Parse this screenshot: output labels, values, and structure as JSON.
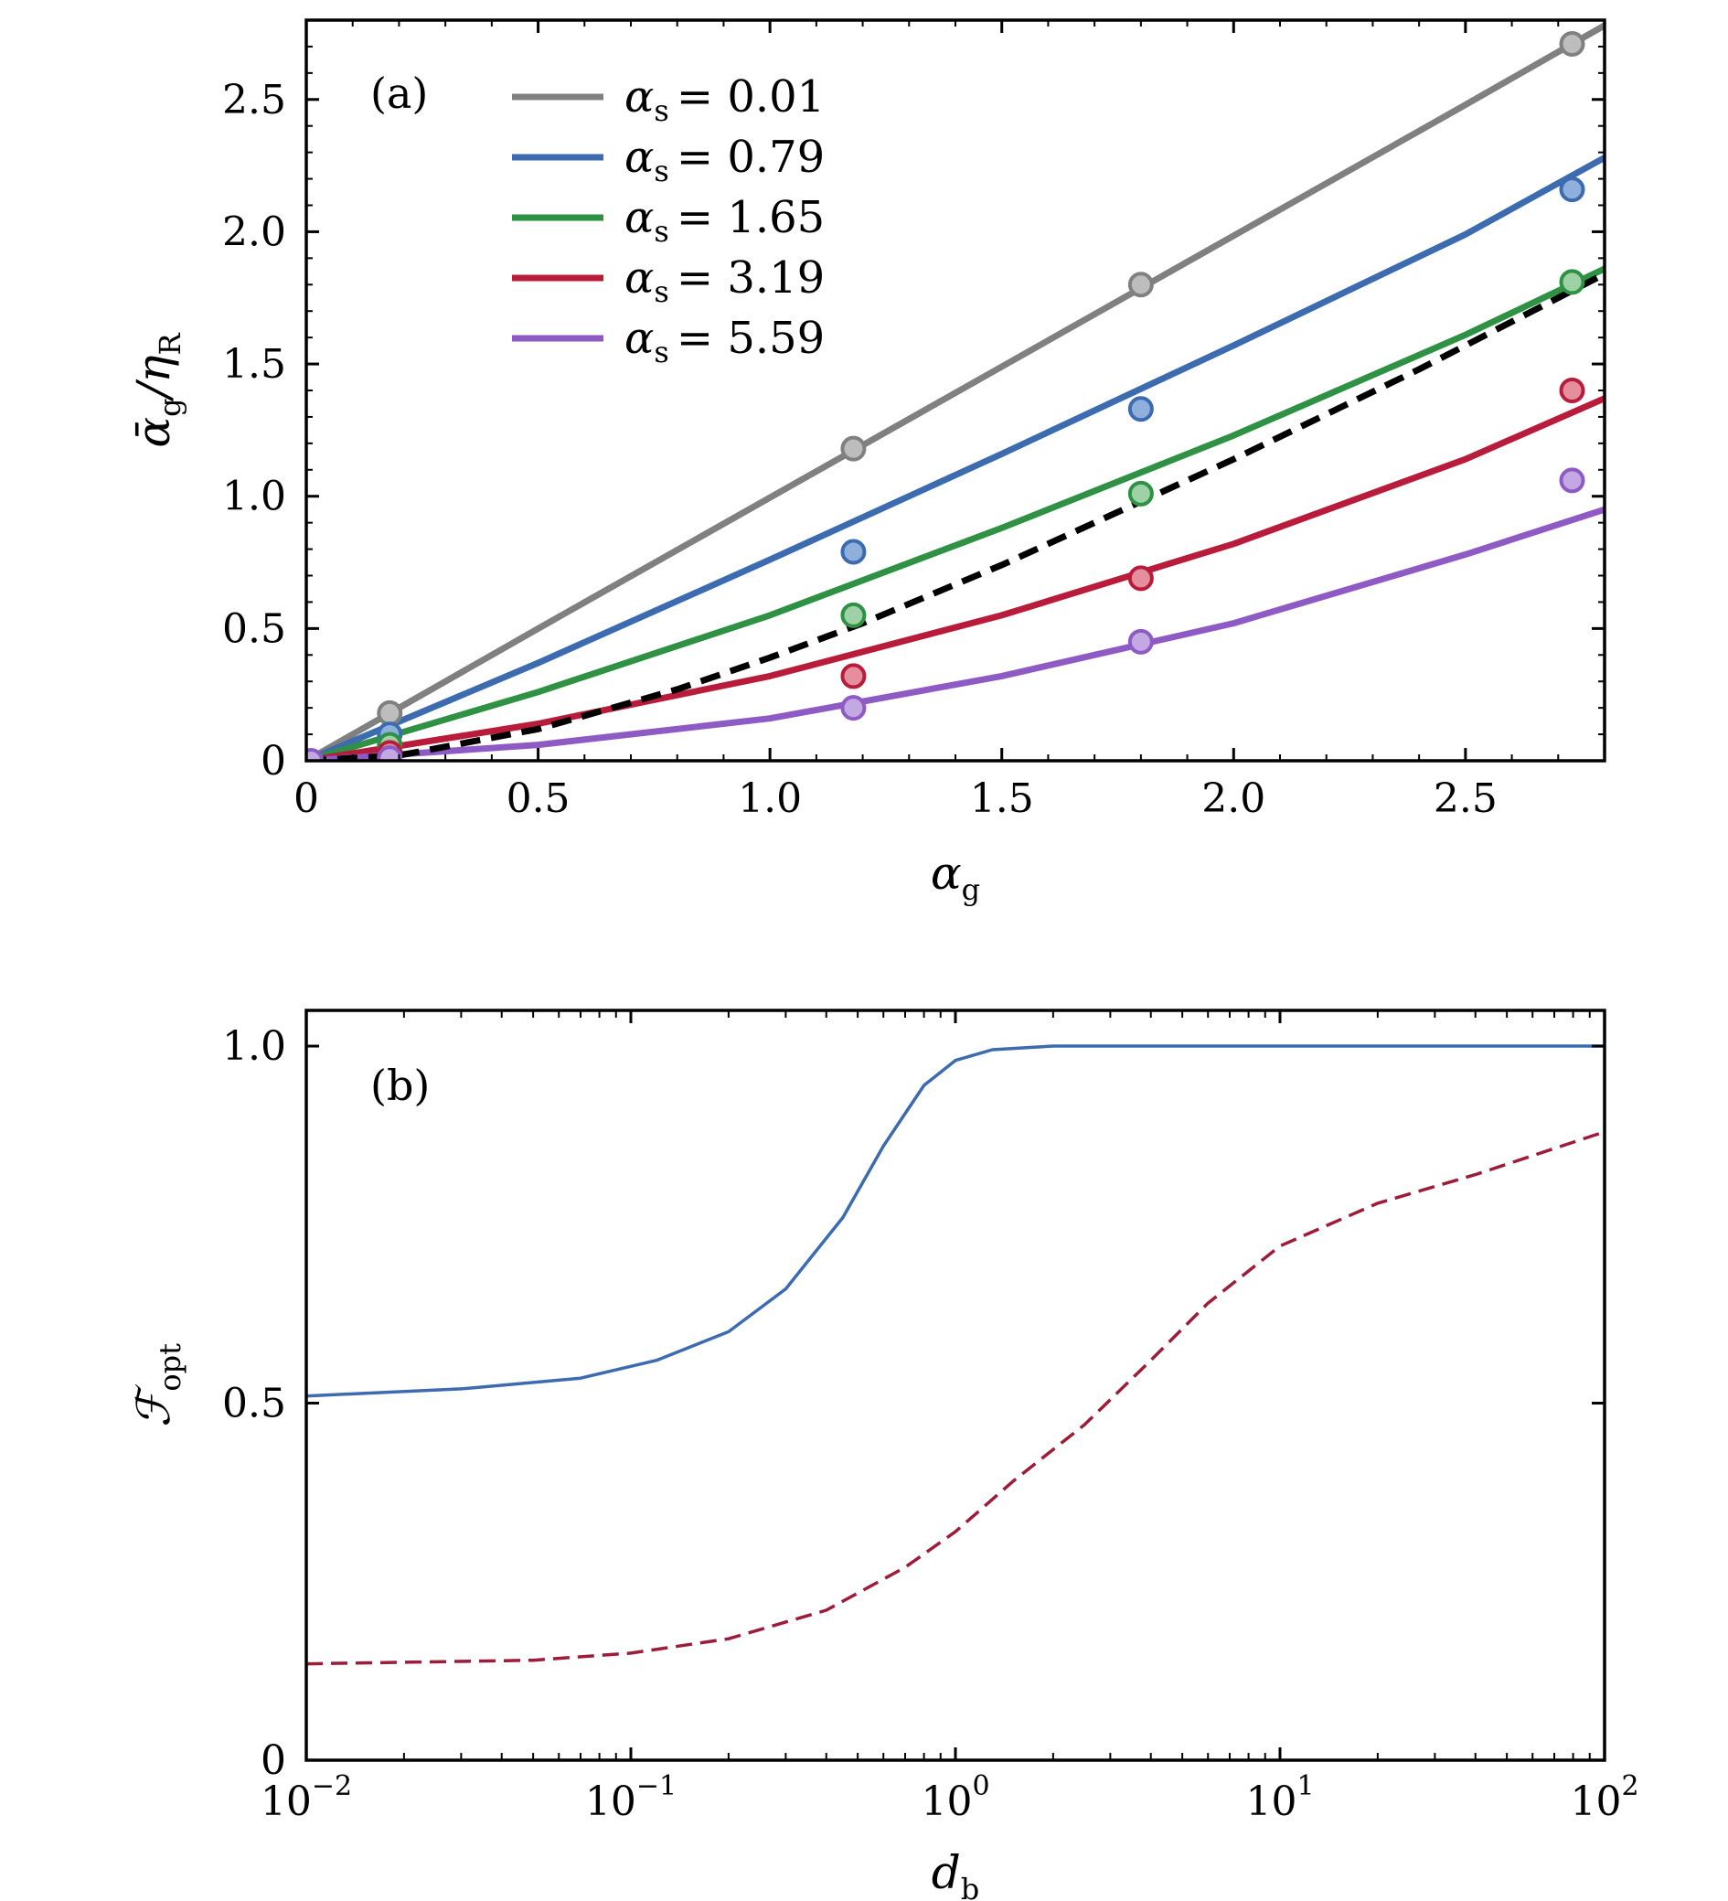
{
  "chart_data": [
    {
      "type": "line",
      "panel_label": "(a)",
      "xlabel": {
        "main": "α",
        "sub": "g"
      },
      "ylabel": {
        "main": "ᾱ",
        "sub1": "g",
        "mid": "/η",
        "sub2": "R"
      },
      "xlim": [
        0,
        2.8
      ],
      "ylim": [
        0,
        2.8
      ],
      "xticks": [
        0,
        0.5,
        1.0,
        1.5,
        2.0,
        2.5
      ],
      "xtick_labels": [
        "0",
        "0.5",
        "1.0",
        "1.5",
        "2.0",
        "2.5"
      ],
      "yticks": [
        0,
        0.5,
        1.0,
        1.5,
        2.0,
        2.5
      ],
      "ytick_labels": [
        "0",
        "0.5",
        "1.0",
        "1.5",
        "2.0",
        "2.5"
      ],
      "legend_position": "top-left",
      "legend_symbol": "α",
      "legend_sub": "s",
      "series": [
        {
          "name": "= 0.01",
          "color": "#808080",
          "marker_fill": "#bdbdbd",
          "line": {
            "x": [
              0,
              0.5,
              1.0,
              1.5,
              2.0,
              2.5,
              2.8
            ],
            "y": [
              0,
              0.5,
              0.995,
              1.49,
              1.985,
              2.48,
              2.78
            ]
          },
          "points": {
            "x": [
              0.18,
              1.18,
              1.8,
              2.73
            ],
            "y": [
              0.18,
              1.18,
              1.8,
              2.71
            ]
          }
        },
        {
          "name": "= 0.79",
          "color": "#3c6bb0",
          "marker_fill": "#8fb0dc",
          "line": {
            "x": [
              0,
              0.5,
              1.0,
              1.5,
              2.0,
              2.5,
              2.8
            ],
            "y": [
              0,
              0.37,
              0.76,
              1.16,
              1.57,
              1.99,
              2.28
            ]
          },
          "points": {
            "x": [
              0.18,
              1.18,
              1.8,
              2.73
            ],
            "y": [
              0.1,
              0.79,
              1.33,
              2.16
            ]
          }
        },
        {
          "name": "= 1.65",
          "color": "#2e9144",
          "marker_fill": "#9ed1a6",
          "line": {
            "x": [
              0,
              0.5,
              1.0,
              1.5,
              2.0,
              2.5,
              2.8
            ],
            "y": [
              0,
              0.26,
              0.55,
              0.88,
              1.23,
              1.61,
              1.86
            ]
          },
          "points": {
            "x": [
              0.18,
              1.18,
              1.8,
              2.73
            ],
            "y": [
              0.06,
              0.55,
              1.01,
              1.81
            ]
          }
        },
        {
          "name": "= 3.19",
          "color": "#b81c3a",
          "marker_fill": "#e48e9e",
          "line": {
            "x": [
              0,
              0.5,
              1.0,
              1.5,
              2.0,
              2.5,
              2.8
            ],
            "y": [
              0,
              0.14,
              0.32,
              0.55,
              0.82,
              1.14,
              1.37
            ]
          },
          "points": {
            "x": [
              0.18,
              1.18,
              1.8,
              2.73
            ],
            "y": [
              0.03,
              0.32,
              0.69,
              1.4
            ]
          }
        },
        {
          "name": "= 5.59",
          "color": "#8e5bc4",
          "marker_fill": "#c4a8e4",
          "line": {
            "x": [
              0,
              0.5,
              1.0,
              1.5,
              2.0,
              2.5,
              2.8
            ],
            "y": [
              0,
              0.06,
              0.16,
              0.32,
              0.52,
              0.78,
              0.95
            ]
          },
          "points": {
            "x": [
              0.18,
              1.18,
              1.8,
              2.73
            ],
            "y": [
              0.01,
              0.2,
              0.45,
              1.06
            ]
          }
        }
      ],
      "reference_curve": {
        "style": "dashed",
        "color": "#000000",
        "x": [
          0,
          0.2,
          0.5,
          0.8,
          1.0,
          1.2,
          1.5,
          1.8,
          2.0,
          2.4,
          2.8
        ],
        "y": [
          0,
          0.02,
          0.12,
          0.27,
          0.39,
          0.52,
          0.74,
          0.98,
          1.14,
          1.48,
          1.84
        ]
      }
    },
    {
      "type": "line",
      "panel_label": "(b)",
      "xlabel": {
        "main": "d",
        "sub": "b"
      },
      "ylabel": {
        "main": "ℱ",
        "sub": "opt"
      },
      "xscale": "log",
      "xlim": [
        0.01,
        100
      ],
      "ylim": [
        0,
        1.05
      ],
      "xticks": [
        0.01,
        0.1,
        1,
        10,
        100
      ],
      "xtick_labels": [
        {
          "base": "10",
          "exp": "−2"
        },
        {
          "base": "10",
          "exp": "−1"
        },
        {
          "base": "10",
          "exp": "0"
        },
        {
          "base": "10",
          "exp": "1"
        },
        {
          "base": "10",
          "exp": "2"
        }
      ],
      "yticks": [
        0,
        0.5,
        1.0
      ],
      "ytick_labels": [
        "0",
        "0.5",
        "1.0"
      ],
      "series": [
        {
          "style": "solid",
          "color": "#3c6bb0",
          "x": [
            0.01,
            0.03,
            0.07,
            0.12,
            0.2,
            0.3,
            0.45,
            0.6,
            0.8,
            1.0,
            1.3,
            2.0,
            5,
            100
          ],
          "y": [
            0.51,
            0.52,
            0.535,
            0.56,
            0.6,
            0.66,
            0.76,
            0.86,
            0.945,
            0.98,
            0.995,
            1.0,
            1.0,
            1.0
          ]
        },
        {
          "style": "dashed",
          "color": "#9c1c3a",
          "x": [
            0.01,
            0.05,
            0.1,
            0.2,
            0.4,
            0.7,
            1.0,
            1.5,
            2.5,
            4,
            6,
            10,
            20,
            40,
            100
          ],
          "y": [
            0.135,
            0.14,
            0.15,
            0.17,
            0.21,
            0.27,
            0.32,
            0.39,
            0.47,
            0.56,
            0.64,
            0.72,
            0.78,
            0.82,
            0.88
          ]
        }
      ]
    }
  ]
}
